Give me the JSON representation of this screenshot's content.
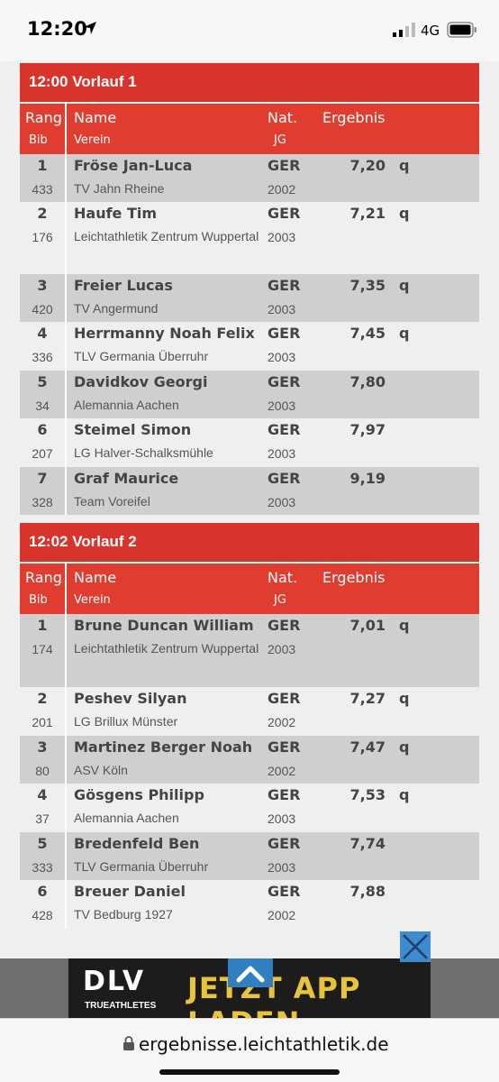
{
  "status_bar": {
    "time": "12:20",
    "network": "4G"
  },
  "heats": [
    {
      "title": "12:00 Vorlauf 1",
      "headers": {
        "rang": "Rang",
        "bib": "Bib",
        "name": "Name",
        "verein": "Verein",
        "nat": "Nat.",
        "jg": "JG",
        "ergebnis": "Ergebnis"
      },
      "rows": [
        {
          "rank": "1",
          "bib": "433",
          "name": "Fröse Jan-Luca",
          "club": "TV Jahn Rheine",
          "nat": "GER",
          "year": "2002",
          "result": "7,20",
          "q": "q"
        },
        {
          "rank": "2",
          "bib": "176",
          "name": "Haufe Tim",
          "club": "Leichtathletik Zentrum Wuppertal",
          "nat": "GER",
          "year": "2003",
          "result": "7,21",
          "q": "q"
        },
        {
          "rank": "3",
          "bib": "420",
          "name": "Freier Lucas",
          "club": "TV Angermund",
          "nat": "GER",
          "year": "2003",
          "result": "7,35",
          "q": "q"
        },
        {
          "rank": "4",
          "bib": "336",
          "name": "Herrmanny Noah Felix",
          "club": "TLV Germania Überruhr",
          "nat": "GER",
          "year": "2003",
          "result": "7,45",
          "q": "q"
        },
        {
          "rank": "5",
          "bib": "34",
          "name": "Davidkov Georgi",
          "club": "Alemannia Aachen",
          "nat": "GER",
          "year": "2003",
          "result": "7,80",
          "q": ""
        },
        {
          "rank": "6",
          "bib": "207",
          "name": "Steimel Simon",
          "club": "LG Halver-Schalksmühle",
          "nat": "GER",
          "year": "2003",
          "result": "7,97",
          "q": ""
        },
        {
          "rank": "7",
          "bib": "328",
          "name": "Graf Maurice",
          "club": "Team Voreifel",
          "nat": "GER",
          "year": "2003",
          "result": "9,19",
          "q": ""
        }
      ]
    },
    {
      "title": "12:02 Vorlauf 2",
      "headers": {
        "rang": "Rang",
        "bib": "Bib",
        "name": "Name",
        "verein": "Verein",
        "nat": "Nat.",
        "jg": "JG",
        "ergebnis": "Ergebnis"
      },
      "rows": [
        {
          "rank": "1",
          "bib": "174",
          "name": "Brune Duncan William",
          "club": "Leichtathletik Zentrum Wuppertal",
          "nat": "GER",
          "year": "2003",
          "result": "7,01",
          "q": "q"
        },
        {
          "rank": "2",
          "bib": "201",
          "name": "Peshev Silyan",
          "club": "LG Brillux Münster",
          "nat": "GER",
          "year": "2002",
          "result": "7,27",
          "q": "q"
        },
        {
          "rank": "3",
          "bib": "80",
          "name": "Martinez Berger Noah",
          "club": "ASV Köln",
          "nat": "GER",
          "year": "2002",
          "result": "7,47",
          "q": "q"
        },
        {
          "rank": "4",
          "bib": "37",
          "name": "Gösgens Philipp",
          "club": "Alemannia Aachen",
          "nat": "GER",
          "year": "2003",
          "result": "7,53",
          "q": "q"
        },
        {
          "rank": "5",
          "bib": "333",
          "name": "Bredenfeld Ben",
          "club": "TLV Germania Überruhr",
          "nat": "GER",
          "year": "2003",
          "result": "7,74",
          "q": ""
        },
        {
          "rank": "6",
          "bib": "428",
          "name": "Breuer Daniel",
          "club": "TV Bedburg 1927",
          "nat": "GER",
          "year": "2002",
          "result": "7,88",
          "q": ""
        }
      ]
    }
  ],
  "ad": {
    "logo": "DLV",
    "sub": "TRUEATHLETES",
    "text": "JETZT APP LADEN",
    "up_icon": "chevron-up-icon",
    "close_icon": "close-icon"
  },
  "url_bar": {
    "url": "ergebnisse.leichtathletik.de",
    "icon": "lock-icon"
  },
  "colors": {
    "title_red": "#d9342b",
    "header_red": "#e03c30",
    "row_dark": "#cfcfcf",
    "row_light": "#efefef",
    "ad_yellow": "#e8c43a"
  }
}
